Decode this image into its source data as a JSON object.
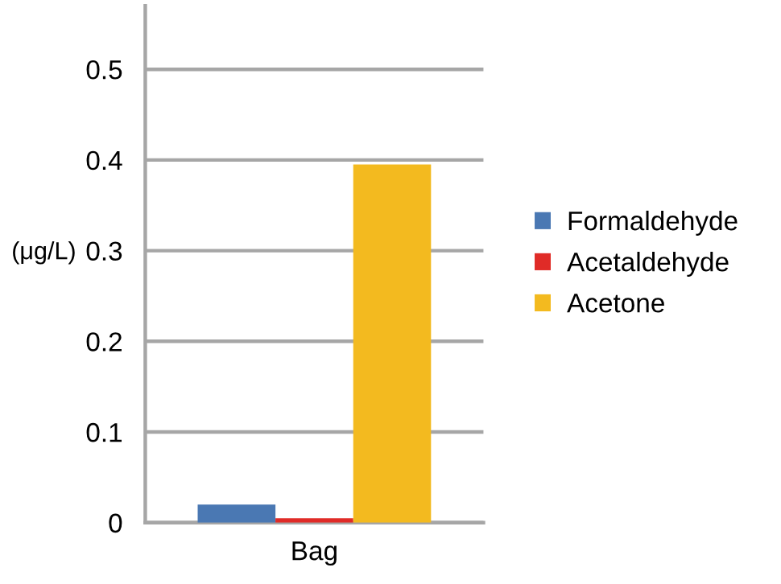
{
  "chart_data": {
    "type": "bar",
    "ylabel": "(μg/L)",
    "categories": [
      "Bag"
    ],
    "series": [
      {
        "name": "Formaldehyde",
        "color": "#4a78b3",
        "values": [
          0.02
        ]
      },
      {
        "name": "Acetaldehyde",
        "color": "#e02b27",
        "values": [
          0.005
        ]
      },
      {
        "name": "Acetone",
        "color": "#f3ba1f",
        "values": [
          0.395
        ]
      }
    ],
    "ylim": [
      0,
      0.57
    ],
    "yticks": [
      {
        "value": 0,
        "label": "0"
      },
      0.1,
      0.2,
      0.3,
      0.4,
      0.5
    ],
    "grid": "y",
    "legend": "right"
  }
}
